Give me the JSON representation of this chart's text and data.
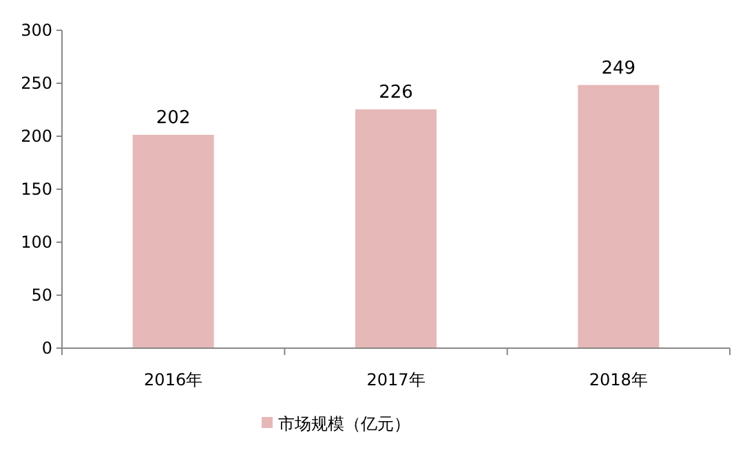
{
  "chart_data": {
    "type": "bar",
    "categories": [
      "2016年",
      "2017年",
      "2018年"
    ],
    "series": [
      {
        "name": "市场规模（亿元）",
        "color": "#e6b8b7",
        "values": [
          202,
          226,
          249
        ]
      }
    ],
    "ylim": [
      0,
      300
    ],
    "yticks": [
      0,
      50,
      100,
      150,
      200,
      250,
      300
    ],
    "data_labels": true,
    "legend": "bottom"
  }
}
